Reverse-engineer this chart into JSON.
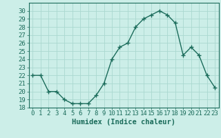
{
  "x": [
    0,
    1,
    2,
    3,
    4,
    5,
    6,
    7,
    8,
    9,
    10,
    11,
    12,
    13,
    14,
    15,
    16,
    17,
    18,
    19,
    20,
    21,
    22,
    23
  ],
  "y": [
    22,
    22,
    20,
    20,
    19,
    18.5,
    18.5,
    18.5,
    19.5,
    21,
    24,
    25.5,
    26,
    28,
    29,
    29.5,
    30,
    29.5,
    28.5,
    24.5,
    25.5,
    24.5,
    22,
    20.5
  ],
  "line_color": "#1a6b5a",
  "marker": "+",
  "marker_size": 4,
  "marker_lw": 1.0,
  "bg_color": "#cceee8",
  "grid_color": "#aad8d0",
  "xlabel": "Humidex (Indice chaleur)",
  "xlim": [
    -0.5,
    23.5
  ],
  "ylim": [
    18,
    31
  ],
  "yticks": [
    18,
    19,
    20,
    21,
    22,
    23,
    24,
    25,
    26,
    27,
    28,
    29,
    30
  ],
  "xticks": [
    0,
    1,
    2,
    3,
    4,
    5,
    6,
    7,
    8,
    9,
    10,
    11,
    12,
    13,
    14,
    15,
    16,
    17,
    18,
    19,
    20,
    21,
    22,
    23
  ],
  "xlabel_fontsize": 7.5,
  "tick_fontsize": 6.5,
  "linewidth": 1.0
}
